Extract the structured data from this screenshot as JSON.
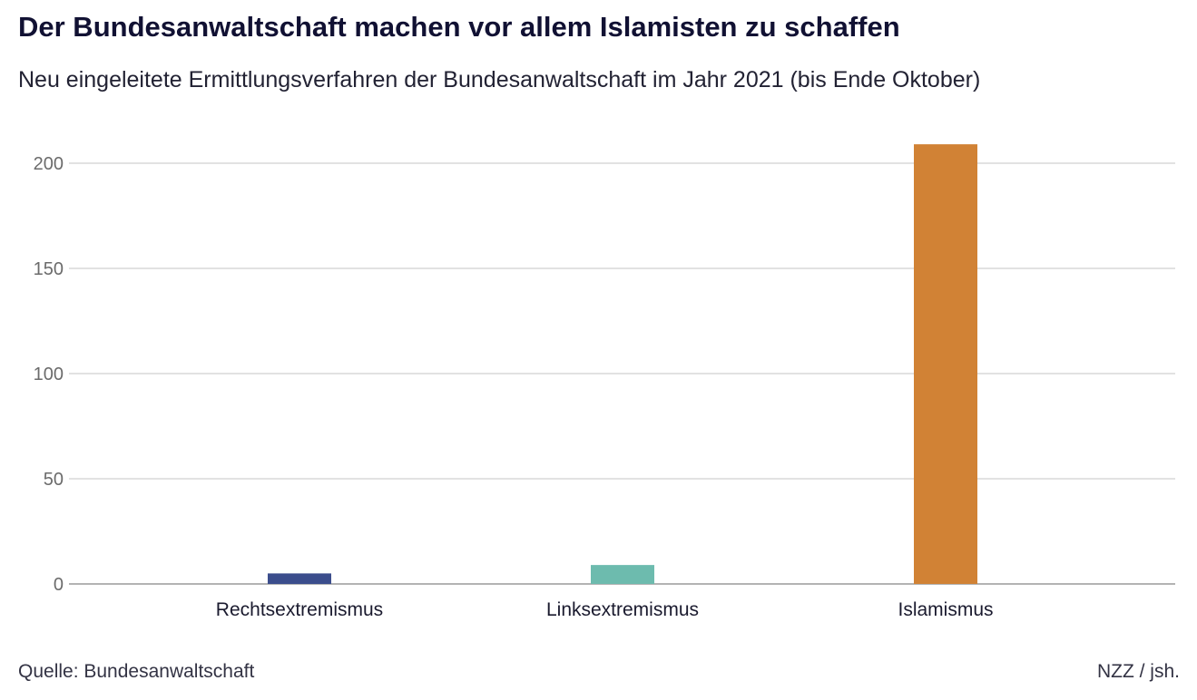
{
  "header": {
    "title": "Der Bundesanwaltschaft machen vor allem Islamisten zu schaffen",
    "subtitle": "Neu eingeleitete Ermittlungsverfahren der Bundesanwaltschaft im Jahr 2021 (bis Ende Oktober)"
  },
  "footer": {
    "source": "Quelle: Bundesanwaltschaft",
    "credit": "NZZ / jsh."
  },
  "chart_data": {
    "type": "bar",
    "title": "Der Bundesanwaltschaft machen vor allem Islamisten zu schaffen",
    "subtitle": "Neu eingeleitete Ermittlungsverfahren der Bundesanwaltschaft im Jahr 2021 (bis Ende Oktober)",
    "categories": [
      "Rechtsextremismus",
      "Linksextremismus",
      "Islamismus"
    ],
    "values": [
      5,
      9,
      209
    ],
    "colors": [
      "#3b4d8c",
      "#6dbbae",
      "#d18235"
    ],
    "ylim": [
      0,
      210
    ],
    "yticks": [
      0,
      50,
      100,
      150,
      200
    ],
    "xlabel": "",
    "ylabel": "",
    "grid": true,
    "legend": "none"
  }
}
